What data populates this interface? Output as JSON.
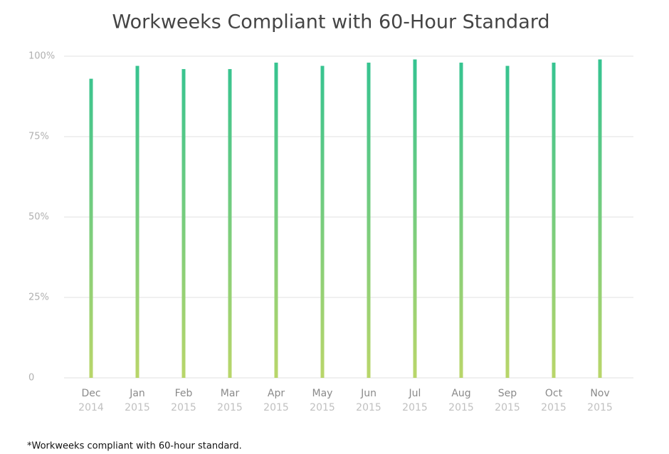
{
  "chart_data": {
    "type": "bar",
    "title": "Workweeks Compliant with 60-Hour Standard",
    "footnote": "*Workweeks compliant with 60-hour standard.",
    "categories": [
      "Dec",
      "Jan",
      "Feb",
      "Mar",
      "Apr",
      "May",
      "Jun",
      "Jul",
      "Aug",
      "Sep",
      "Oct",
      "Nov"
    ],
    "category_years": [
      "2014",
      "2015",
      "2015",
      "2015",
      "2015",
      "2015",
      "2015",
      "2015",
      "2015",
      "2015",
      "2015",
      "2015"
    ],
    "values": [
      93,
      97,
      96,
      96,
      98,
      97,
      98,
      99,
      98,
      97,
      98,
      99
    ],
    "color": [
      "#33c391",
      "#b9d66a"
    ],
    "ylim": [
      0,
      100
    ],
    "yticks": [
      0,
      {
        "value": 25,
        "label": "25%"
      },
      {
        "value": 50,
        "label": "50%"
      },
      {
        "value": 75,
        "label": "75%"
      },
      {
        "value": 100,
        "label": "100%"
      }
    ],
    "grid": true
  }
}
